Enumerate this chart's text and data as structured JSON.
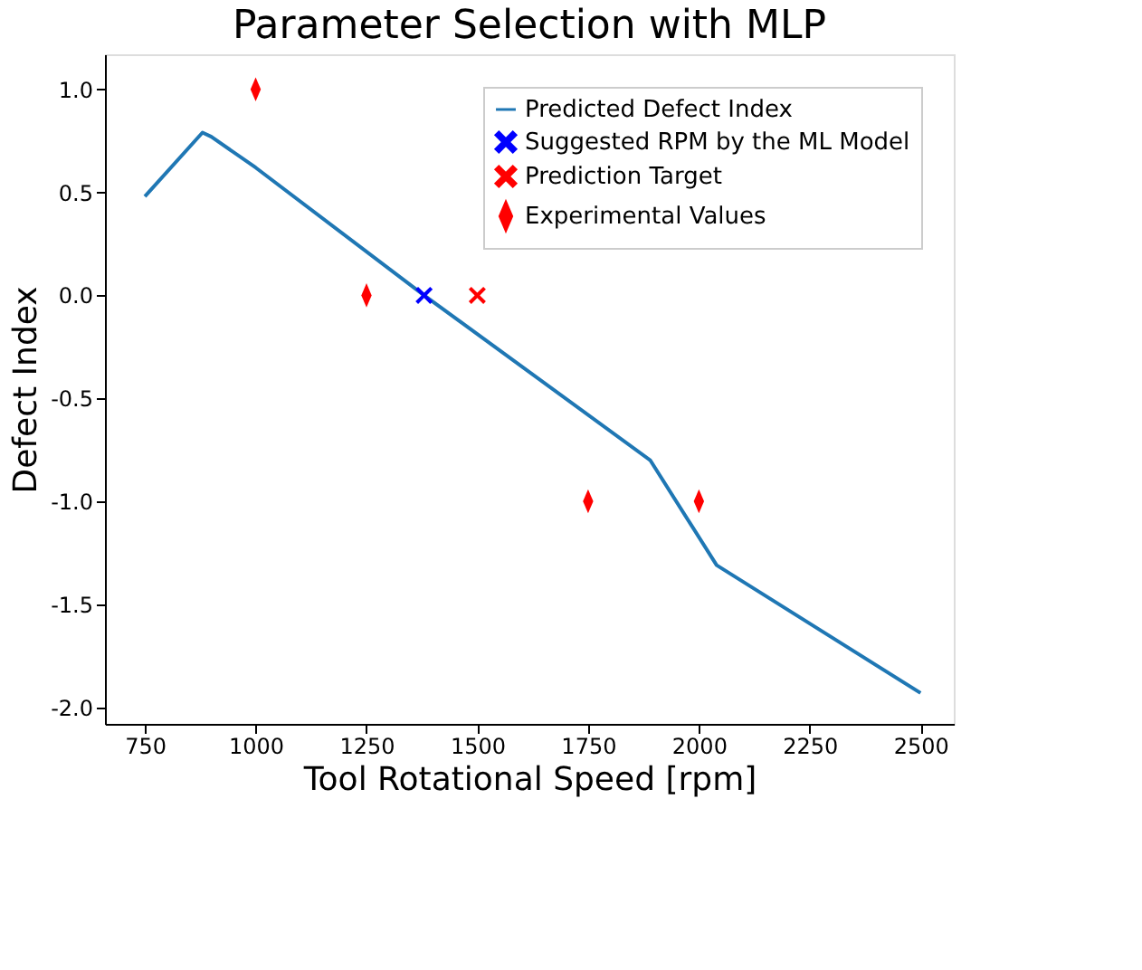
{
  "chart_data": {
    "type": "line",
    "title": "Parameter Selection with MLP",
    "xlabel": "Tool Rotational Speed [rpm]",
    "ylabel": "Defect Index",
    "xlim": [
      660,
      2575
    ],
    "ylim": [
      -2.08,
      1.17
    ],
    "xticks": [
      750,
      1000,
      1250,
      1500,
      1750,
      2000,
      2250,
      2500
    ],
    "yticks": [
      {
        "value": -2,
        "label": "-2.0"
      },
      -1.5,
      {
        "value": -1,
        "label": "-1.0"
      },
      -0.5,
      {
        "value": 0,
        "label": "0.0"
      },
      0.5,
      {
        "value": 1,
        "label": "1.0"
      }
    ],
    "grid": false,
    "legend": "top right",
    "series": [
      {
        "name": "Predicted Defect Index",
        "color": "#1f77b4",
        "marker": "none",
        "line_style": "solid",
        "x": [
          750,
          880,
          900,
          1000,
          1380,
          1890,
          2040,
          2500
        ],
        "values": [
          0.48,
          0.79,
          0.77,
          0.62,
          0.0,
          -0.8,
          -1.31,
          -1.93
        ]
      },
      {
        "name": "Suggested RPM by the ML Model",
        "type": "scatter",
        "color": "#0000ff",
        "marker": "cross",
        "x": [
          1380
        ],
        "values": [
          0.0
        ]
      },
      {
        "name": "Prediction Target",
        "type": "scatter",
        "color": "#ff0000",
        "marker": "cross",
        "x": [
          1500
        ],
        "values": [
          0.0
        ]
      },
      {
        "name": "Experimental Values",
        "type": "scatter",
        "color": "#ff0000",
        "marker": "diamond",
        "x": [
          1000,
          1250,
          1750,
          2000
        ],
        "values": [
          1.0,
          0.0,
          -1.0,
          -1.0
        ]
      }
    ]
  }
}
